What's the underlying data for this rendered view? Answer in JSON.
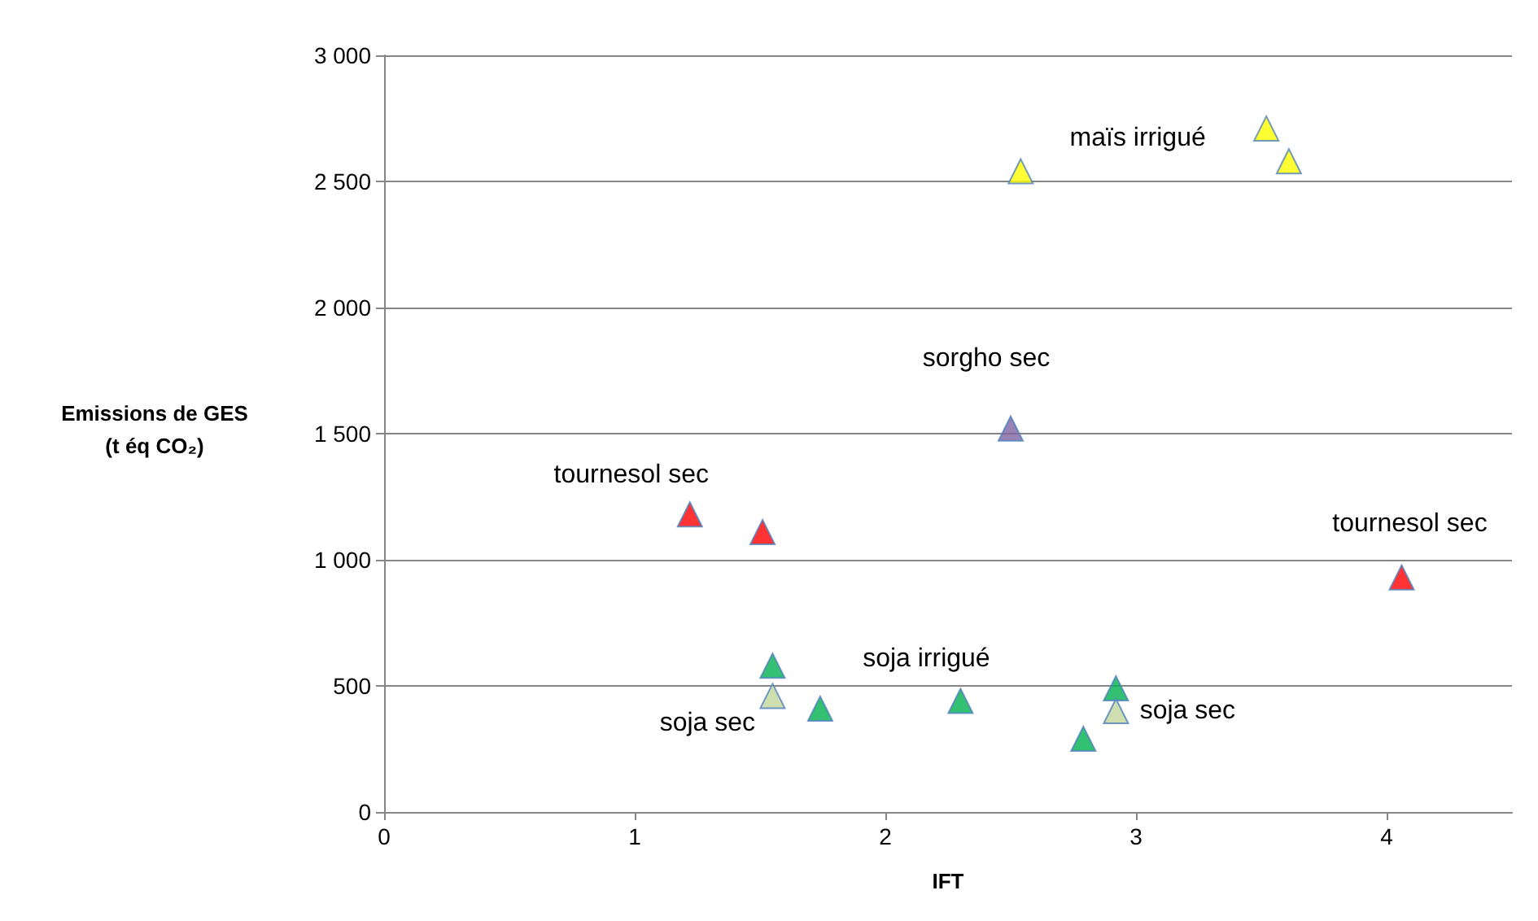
{
  "chart_data": {
    "type": "scatter",
    "xlabel": "IFT",
    "ylabel": "Emissions de GES\n(t éq CO₂)",
    "xlim": [
      0,
      4.5
    ],
    "xticks": [
      0,
      1,
      2,
      3,
      4
    ],
    "ylim": [
      0,
      3000
    ],
    "yticks": [
      0,
      500,
      {
        "value": 1000,
        "label": "1 000"
      },
      {
        "value": 1500,
        "label": "1 500"
      },
      {
        "value": 2000,
        "label": "2 000"
      },
      {
        "value": 2500,
        "label": "2 500"
      },
      {
        "value": 3000,
        "label": "3 000"
      }
    ],
    "grid": "y",
    "marker": "triangle",
    "series": [
      {
        "color": "#ffff00",
        "x": [
          2.54,
          3.52,
          3.61
        ],
        "values": [
          2540,
          2710,
          2580
        ]
      },
      {
        "color": "#8064a2",
        "x": [
          2.5
        ],
        "values": [
          1520
        ]
      },
      {
        "color": "#ff0000",
        "x": [
          1.22,
          1.51,
          4.06
        ],
        "values": [
          1180,
          1110,
          930
        ]
      },
      {
        "color": "#00b050",
        "x": [
          1.55,
          1.74,
          2.3,
          2.92,
          2.79
        ],
        "values": [
          580,
          410,
          440,
          490,
          290
        ]
      },
      {
        "color": "#c3d69b",
        "x": [
          1.55,
          2.92
        ],
        "values": [
          460,
          400
        ]
      }
    ],
    "annotations": [
      {
        "text": "maïs irrigué",
        "x": 3.52,
        "y": 2710
      },
      {
        "text": "sorgho sec",
        "x": 2.5,
        "y": 1520
      },
      {
        "text": "tournesol sec",
        "x": 1.22,
        "y": 1180
      },
      {
        "text": "tournesol sec",
        "x": 4.06,
        "y": 930
      },
      {
        "text": "soja irrigué",
        "x": 2.3,
        "y": 440
      },
      {
        "text": "soja sec",
        "x": 1.55,
        "y": 460
      },
      {
        "text": "soja sec",
        "x": 2.92,
        "y": 400
      }
    ]
  }
}
